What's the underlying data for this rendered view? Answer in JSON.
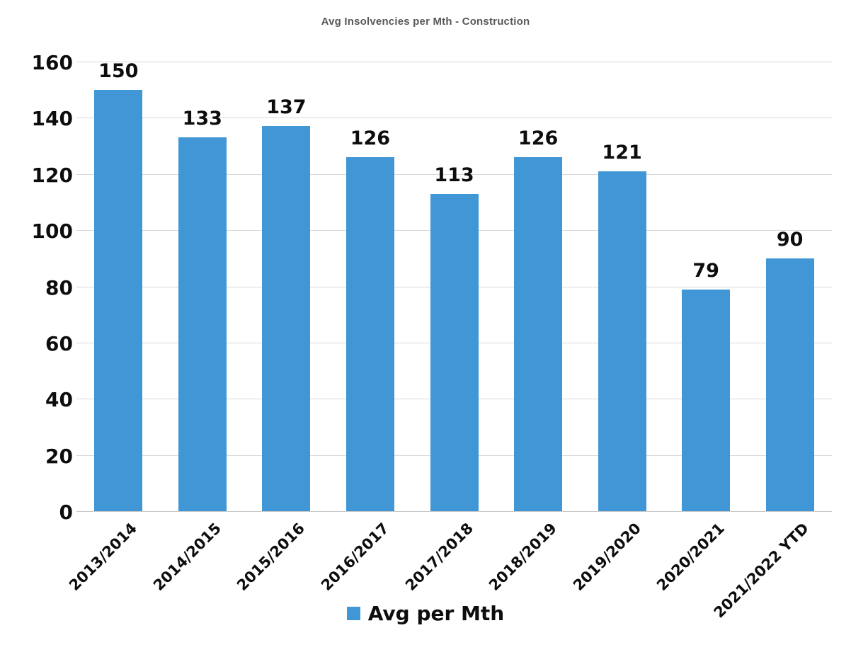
{
  "title": "Avg Insolvencies per Mth - Construction",
  "legend": {
    "label": "Avg per Mth",
    "swatch_color": "#4196D5"
  },
  "colors": {
    "bar": "#4196D5",
    "grid": "#D9D9D9",
    "axis_line": "#C9C9C9",
    "title_text": "#595959",
    "label_text": "#0d0d0d",
    "background": "#ffffff"
  },
  "chart_data": {
    "type": "bar",
    "title": "Avg Insolvencies per Mth - Construction",
    "categories": [
      "2013/2014",
      "2014/2015",
      "2015/2016",
      "2016/2017",
      "2017/2018",
      "2018/2019",
      "2019/2020",
      "2020/2021",
      "2021/2022 YTD"
    ],
    "values": [
      150,
      133,
      137,
      126,
      113,
      126,
      121,
      79,
      90
    ],
    "series": [
      {
        "name": "Avg per Mth",
        "values": [
          150,
          133,
          137,
          126,
          113,
          126,
          121,
          79,
          90
        ]
      }
    ],
    "xlabel": "",
    "ylabel": "",
    "ylim": [
      0,
      160
    ],
    "yticks": [
      0,
      20,
      40,
      60,
      80,
      100,
      120,
      140,
      160
    ],
    "grid": true,
    "data_labels": true,
    "x_label_rotation_deg": 45,
    "legend_entries": [
      "Avg per Mth"
    ],
    "legend_position": "bottom"
  }
}
